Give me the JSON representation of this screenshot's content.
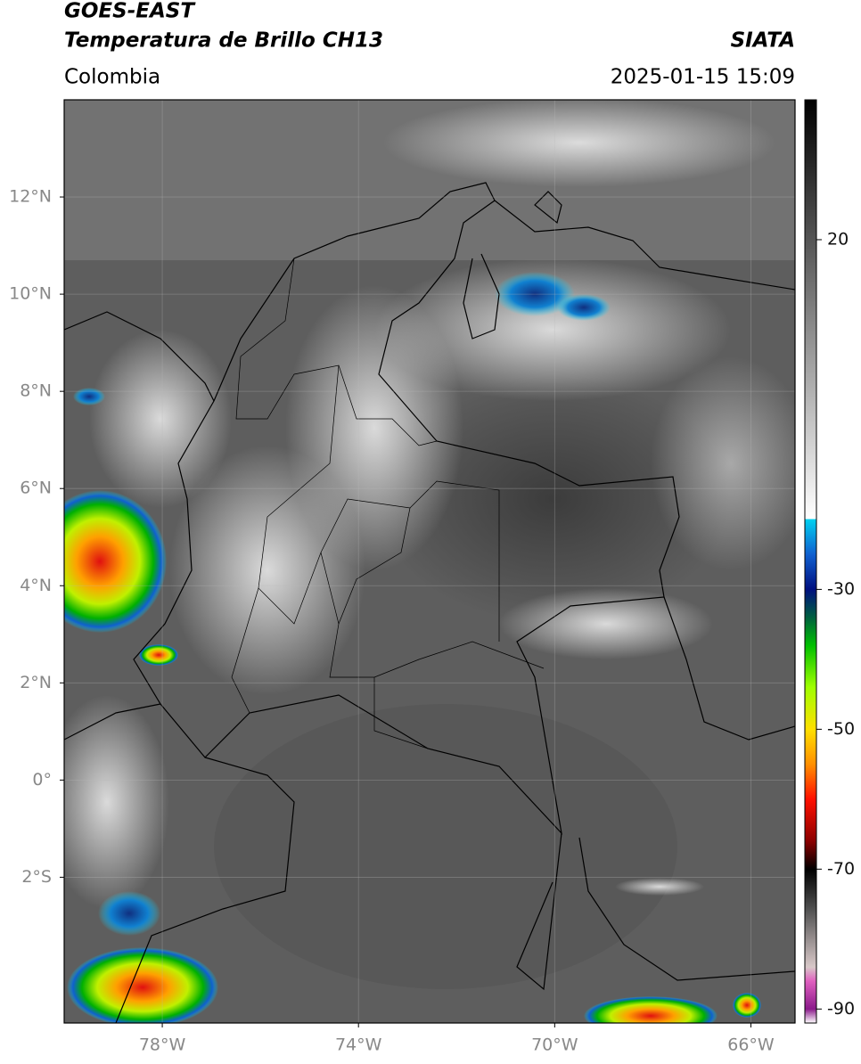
{
  "header": {
    "title": "GOES-EAST",
    "subtitle": "Temperatura de Brillo CH13",
    "source": "SIATA",
    "region": "Colombia",
    "timestamp": "2025-01-15 15:09"
  },
  "map": {
    "xlim": [
      -80,
      -65.1
    ],
    "ylim": [
      -5,
      14
    ],
    "grid": true,
    "xticks": [
      {
        "value": -78,
        "label": "78°W"
      },
      {
        "value": -74,
        "label": "74°W"
      },
      {
        "value": -70,
        "label": "70°W"
      },
      {
        "value": -66,
        "label": "66°W"
      }
    ],
    "yticks": [
      {
        "value": 12,
        "label": "12°N"
      },
      {
        "value": 10,
        "label": "10°N"
      },
      {
        "value": 8,
        "label": "8°N"
      },
      {
        "value": 6,
        "label": "6°N"
      },
      {
        "value": 4,
        "label": "4°N"
      },
      {
        "value": 2,
        "label": "2°N"
      },
      {
        "value": 0,
        "label": "0°"
      },
      {
        "value": -2,
        "label": "2°S"
      }
    ]
  },
  "colorbar": {
    "lim": [
      -92,
      40
    ],
    "ticks": [
      20,
      -30,
      -50,
      -70,
      -90
    ],
    "colormap": [
      {
        "value": -92,
        "color": "#ffffff"
      },
      {
        "value": -90,
        "color": "#8b1a8b"
      },
      {
        "value": -86,
        "color": "#e060c0"
      },
      {
        "value": -84,
        "color": "#d8c8c8"
      },
      {
        "value": -76,
        "color": "#555555"
      },
      {
        "value": -70,
        "color": "#000000"
      },
      {
        "value": -66,
        "color": "#8b0000"
      },
      {
        "value": -60,
        "color": "#ff1000"
      },
      {
        "value": -55,
        "color": "#ff9000"
      },
      {
        "value": -50,
        "color": "#ffe000"
      },
      {
        "value": -44,
        "color": "#a0ff00"
      },
      {
        "value": -38,
        "color": "#00c000"
      },
      {
        "value": -34,
        "color": "#006040"
      },
      {
        "value": -30,
        "color": "#001080"
      },
      {
        "value": -25,
        "color": "#1060d0"
      },
      {
        "value": -20,
        "color": "#00d0f0"
      },
      {
        "value": -19.9,
        "color": "#ffffff"
      },
      {
        "value": 40,
        "color": "#000000"
      }
    ]
  }
}
